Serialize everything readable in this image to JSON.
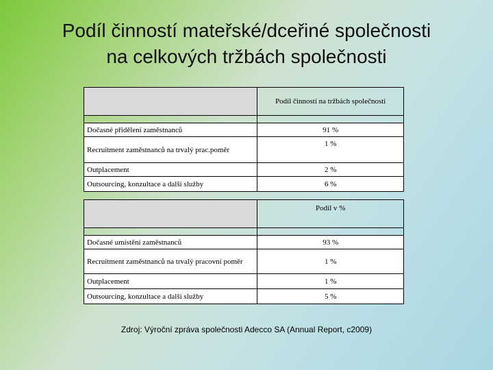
{
  "title": {
    "line1": "Podíl činností mateřské/dceřiné  společnosti",
    "line2": "na celkových tržbách společnosti"
  },
  "table1": {
    "header": "Podíl činností na tržbách společnosti",
    "rows": [
      {
        "label": "Dočasné přidělení zaměstnanců",
        "value": "91 %"
      },
      {
        "label": "Recruitment zaměstnanců na trvalý prac.poměr",
        "value": "1 %"
      },
      {
        "label": "Outplacement",
        "value": "2 %"
      },
      {
        "label": "Outsourcing, konzultace a další služby",
        "value": "6 %"
      }
    ]
  },
  "table2": {
    "header": "Podíl v %",
    "rows": [
      {
        "label": "Dočasné umístění zaměstnanců",
        "value": "93 %"
      },
      {
        "label": "Recruitment zaměstnanců na trvalý pracovní poměr",
        "value": "1 %"
      },
      {
        "label": "Outplacement",
        "value": "1 %"
      },
      {
        "label": "Outsourcing, konzultace a další služby",
        "value": "5 %"
      }
    ]
  },
  "source": "Zdroj: Výroční zpráva společnosti Adecco SA (Annual Report, c2009)"
}
